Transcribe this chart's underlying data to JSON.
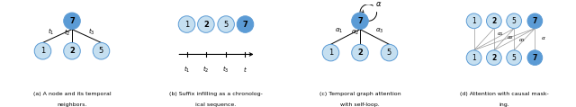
{
  "light_blue": "#C5DFF0",
  "dark_blue": "#5B9BD5",
  "node_edge": "#5B9BD5",
  "bg": "#ffffff",
  "captions": [
    [
      "(a) A node and its temporal",
      "neighbors."
    ],
    [
      "(b) Suffix infilling as a chronolog-",
      "ical sequence."
    ],
    [
      "(c) Temporal graph attention",
      "with self-loop."
    ],
    [
      "(d) Attention with causal mask-",
      "ing."
    ]
  ]
}
